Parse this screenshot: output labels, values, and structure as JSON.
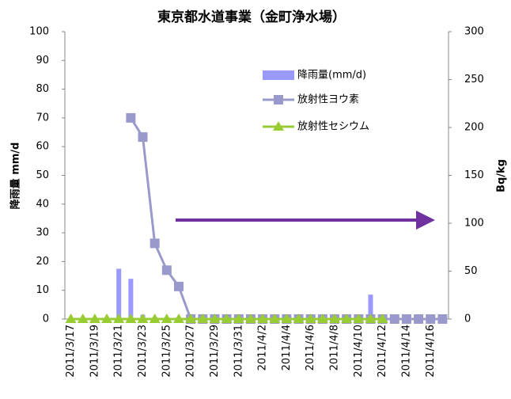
{
  "chart_data": {
    "type": "bar_line",
    "title": "東京都水道事業（金町浄水場）",
    "ylabel": "降雨量 mm/d",
    "y2label": "Bq/kg",
    "categories": [
      "2011/3/17",
      null,
      "2011/3/19",
      null,
      "2011/3/21",
      null,
      "2011/3/23",
      null,
      "2011/3/25",
      null,
      "2011/3/27",
      null,
      "2011/3/29",
      null,
      "2011/3/31",
      null,
      "2011/4/2",
      null,
      "2011/4/4",
      null,
      "2011/4/6",
      null,
      "2011/4/8",
      null,
      "2011/4/10",
      null,
      "2011/4/12",
      null,
      "2011/4/14",
      null,
      "2011/4/16",
      null
    ],
    "series": [
      {
        "name": "降雨量(mm/d)",
        "type": "bar",
        "color": "#9999ff",
        "values": [
          0,
          0,
          0,
          0,
          17.5,
          14,
          1.5,
          0,
          0,
          0,
          0,
          0,
          0,
          0,
          0,
          0,
          0,
          0,
          0,
          0,
          0,
          0,
          0,
          0,
          0,
          8.5,
          0,
          0,
          0,
          0,
          0,
          0
        ]
      },
      {
        "name": "放射性ヨウ素",
        "type": "line",
        "axis": "y2",
        "color": "#9999cc",
        "marker": "square",
        "values": [
          null,
          null,
          null,
          null,
          null,
          210,
          190,
          79,
          51,
          34,
          0,
          0,
          0,
          0,
          0,
          0,
          0,
          0,
          0,
          0,
          0,
          0,
          0,
          0,
          0,
          0,
          0,
          0,
          0,
          0,
          0,
          0
        ]
      },
      {
        "name": "放射性セシウム",
        "type": "line",
        "axis": "y2",
        "color": "#99cc33",
        "marker": "triangle",
        "values": [
          0,
          0,
          0,
          0,
          0,
          0,
          0,
          0,
          0,
          0,
          0,
          0,
          0,
          0,
          0,
          0,
          0,
          0,
          0,
          0,
          0,
          0,
          0,
          0,
          0,
          0,
          0,
          null,
          null,
          null,
          null,
          null
        ]
      }
    ],
    "ylim": [
      0,
      100
    ],
    "yticks": [
      0,
      10,
      20,
      30,
      40,
      50,
      60,
      70,
      80,
      90,
      100
    ],
    "y2lim": [
      0,
      300
    ],
    "y2ticks": [
      0,
      50,
      100,
      150,
      200,
      250,
      300
    ],
    "grid": false
  }
}
